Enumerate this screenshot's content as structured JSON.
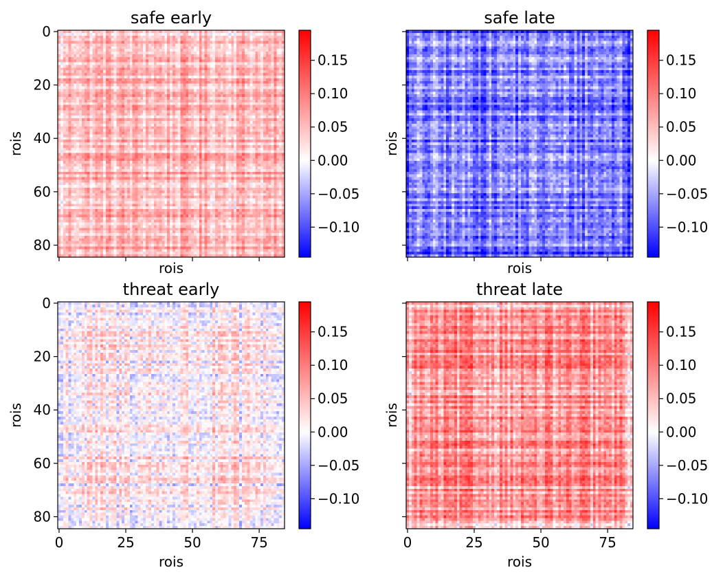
{
  "figure": {
    "colorbar_colors": {
      "low": "#0000ff",
      "mid": "#ffffff",
      "high": "#ff0000"
    }
  },
  "chart_data": [
    {
      "type": "heatmap",
      "title": "safe early",
      "xlabel": "rois",
      "ylabel": "rois",
      "x_ticks": [],
      "y_ticks": [
        "0",
        "20",
        "40",
        "60",
        "80"
      ],
      "matrix_size": 85,
      "extent": [
        0,
        85
      ],
      "pattern": "mostly-positive",
      "colorbar_ticks": [
        "0.15",
        "0.10",
        "0.05",
        "0.00",
        "−0.05",
        "−0.10"
      ],
      "colorbar_range": [
        -0.145,
        0.195
      ]
    },
    {
      "type": "heatmap",
      "title": "safe late",
      "xlabel": "rois",
      "ylabel": "rois",
      "x_ticks": [],
      "y_ticks": [],
      "matrix_size": 85,
      "extent": [
        0,
        85
      ],
      "pattern": "mostly-negative",
      "colorbar_ticks": [
        "0.15",
        "0.10",
        "0.05",
        "0.00",
        "−0.05",
        "−0.10"
      ],
      "colorbar_range": [
        -0.145,
        0.195
      ]
    },
    {
      "type": "heatmap",
      "title": "threat early",
      "xlabel": "rois",
      "ylabel": "rois",
      "x_ticks": [
        "0",
        "25",
        "50",
        "75"
      ],
      "y_ticks": [
        "0",
        "20",
        "40",
        "60",
        "80"
      ],
      "matrix_size": 85,
      "extent": [
        0,
        85
      ],
      "pattern": "mixed",
      "colorbar_ticks": [
        "0.15",
        "0.10",
        "0.05",
        "0.00",
        "−0.05",
        "−0.10"
      ],
      "colorbar_range": [
        -0.145,
        0.195
      ]
    },
    {
      "type": "heatmap",
      "title": "threat late",
      "xlabel": "rois",
      "ylabel": "rois",
      "x_ticks": [
        "0",
        "25",
        "50",
        "75"
      ],
      "y_ticks": [],
      "matrix_size": 85,
      "extent": [
        0,
        85
      ],
      "pattern": "strongly-positive",
      "colorbar_ticks": [
        "0.15",
        "0.10",
        "0.05",
        "0.00",
        "−0.05",
        "−0.10"
      ],
      "colorbar_range": [
        -0.145,
        0.195
      ]
    }
  ]
}
